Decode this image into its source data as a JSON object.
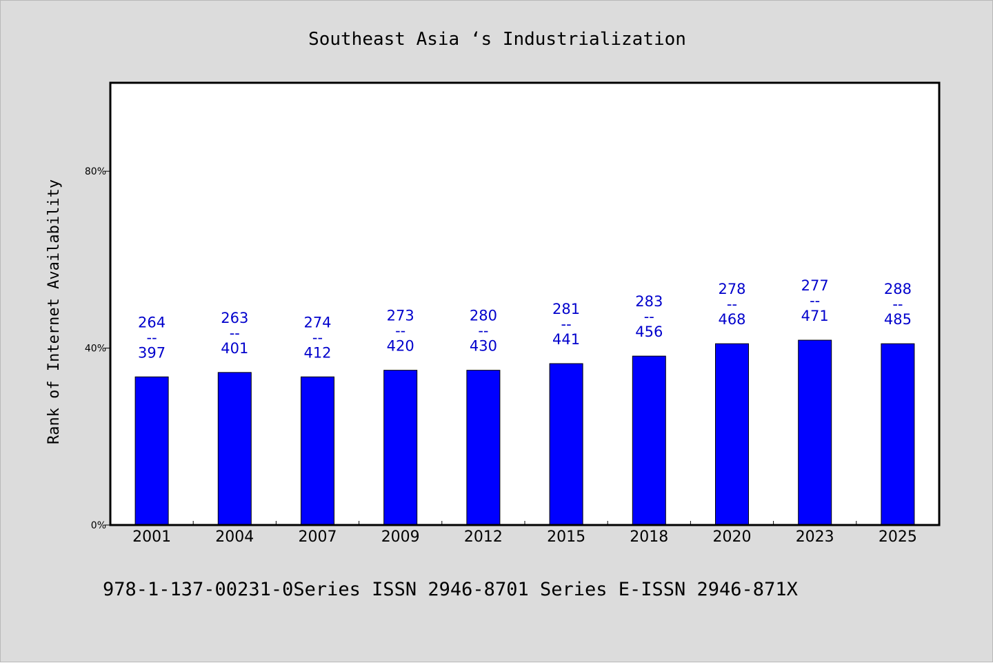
{
  "chart_data": {
    "type": "bar",
    "title": "Southeast Asia ‘s Industrialization",
    "ylabel": "Rank of Internet Availability",
    "xlabel": "",
    "categories": [
      "2001",
      "2004",
      "2007",
      "2009",
      "2012",
      "2015",
      "2018",
      "2020",
      "2023",
      "2025"
    ],
    "values": [
      0.335,
      0.345,
      0.335,
      0.35,
      0.35,
      0.365,
      0.382,
      0.41,
      0.418,
      0.41
    ],
    "bar_labels": [
      {
        "top": "264",
        "sep": "--",
        "bottom": "397"
      },
      {
        "top": "263",
        "sep": "--",
        "bottom": "401"
      },
      {
        "top": "274",
        "sep": "--",
        "bottom": "412"
      },
      {
        "top": "273",
        "sep": "--",
        "bottom": "420"
      },
      {
        "top": "280",
        "sep": "--",
        "bottom": "430"
      },
      {
        "top": "281",
        "sep": "--",
        "bottom": "441"
      },
      {
        "top": "283",
        "sep": "--",
        "bottom": "456"
      },
      {
        "top": "278",
        "sep": "--",
        "bottom": "468"
      },
      {
        "top": "277",
        "sep": "--",
        "bottom": "471"
      },
      {
        "top": "288",
        "sep": "--",
        "bottom": "485"
      }
    ],
    "ylim": [
      0,
      1.0
    ],
    "yticks": [
      0,
      0.4,
      0.8
    ],
    "ytick_labels": [
      "0%",
      "40%",
      "80%"
    ],
    "grid": false,
    "legend": "none",
    "colors": {
      "bar": "#0000ff",
      "bar_label": "#0000cc",
      "background": "#dcdcdc",
      "plot_background": "#ffffff",
      "axis": "#000000"
    }
  },
  "footer": {
    "text": "978-1-137-00231-0Series ISSN 2946-8701 Series E-ISSN 2946-871X"
  }
}
